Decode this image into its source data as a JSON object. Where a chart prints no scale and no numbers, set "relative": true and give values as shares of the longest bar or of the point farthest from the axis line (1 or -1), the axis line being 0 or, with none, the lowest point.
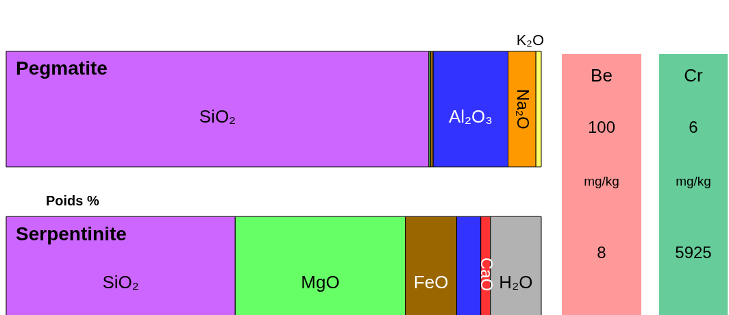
{
  "chart_data": [
    {
      "type": "bar",
      "orientation": "horizontal",
      "stacked": true,
      "relative": true,
      "categories": [
        "Pegmatite",
        "Serpentinite"
      ],
      "series": [
        {
          "name": "SiO₂",
          "color": "#cc66ff",
          "values": [
            0.79,
            0.428
          ]
        },
        {
          "name": "MgO",
          "color": "#66ff66",
          "values": [
            0.003,
            0.318
          ]
        },
        {
          "name": "FeO",
          "color": "#996600",
          "values": [
            0.005,
            0.096
          ]
        },
        {
          "name": "Al₂O₃",
          "color": "#3333ff",
          "values": [
            0.14,
            0.045
          ]
        },
        {
          "name": "CaO",
          "color": "#ff3333",
          "values": [
            null,
            0.018
          ]
        },
        {
          "name": "Na₂O",
          "color": "#ff9900",
          "values": [
            0.052,
            null
          ]
        },
        {
          "name": "K₂O",
          "color": "#ffff66",
          "values": [
            0.01,
            null
          ]
        },
        {
          "name": "H₂O",
          "color": "#b2b2b2",
          "values": [
            null,
            0.095
          ]
        }
      ],
      "annotations": [
        "Poids %"
      ]
    },
    {
      "type": "other",
      "title": "Be",
      "color": "#ff9999",
      "annotations": [
        "100",
        "mg/kg",
        "8"
      ]
    },
    {
      "type": "other",
      "title": "Cr",
      "color": "#66cc99",
      "annotations": [
        "6",
        "mg/kg",
        "5925"
      ]
    }
  ]
}
